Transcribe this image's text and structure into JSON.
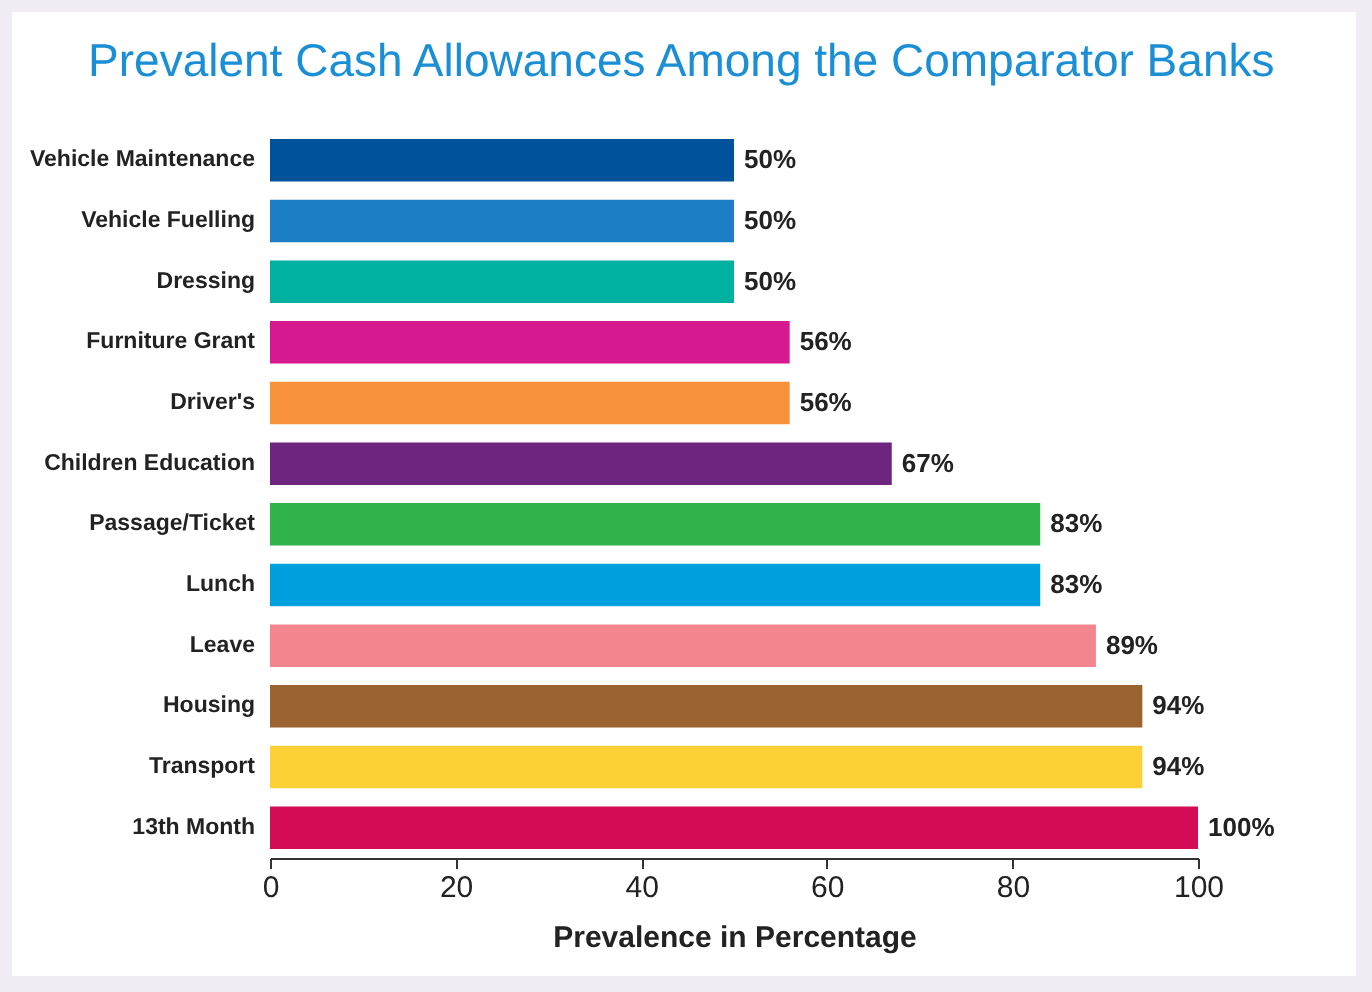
{
  "chart_data": {
    "type": "bar",
    "orientation": "horizontal",
    "title": "Prevalent Cash Allowances Among the Comparator Banks",
    "xlabel": "Prevalence in Percentage",
    "categories": [
      "Vehicle Maintenance",
      "Vehicle Fuelling",
      "Dressing",
      "Furniture Grant",
      "Driver's",
      "Children Education",
      "Passage/Ticket",
      "Lunch",
      "Leave",
      "Housing",
      "Transport",
      "13th Month"
    ],
    "values": [
      50,
      50,
      50,
      56,
      56,
      67,
      83,
      83,
      89,
      94,
      94,
      100
    ],
    "value_labels": [
      "50%",
      "50%",
      "50%",
      "56%",
      "56%",
      "67%",
      "83%",
      "83%",
      "89%",
      "94%",
      "94%",
      "100%"
    ],
    "colors": [
      "#00529b",
      "#1b7dc4",
      "#00b0a0",
      "#d6198f",
      "#f7923a",
      "#6e2580",
      "#2fb34a",
      "#00a0df",
      "#f3858f",
      "#9b6330",
      "#fdd136",
      "#d40b55"
    ],
    "xlim": [
      0,
      100
    ],
    "xticks": [
      0,
      20,
      40,
      60,
      80,
      100
    ],
    "grid": false
  }
}
